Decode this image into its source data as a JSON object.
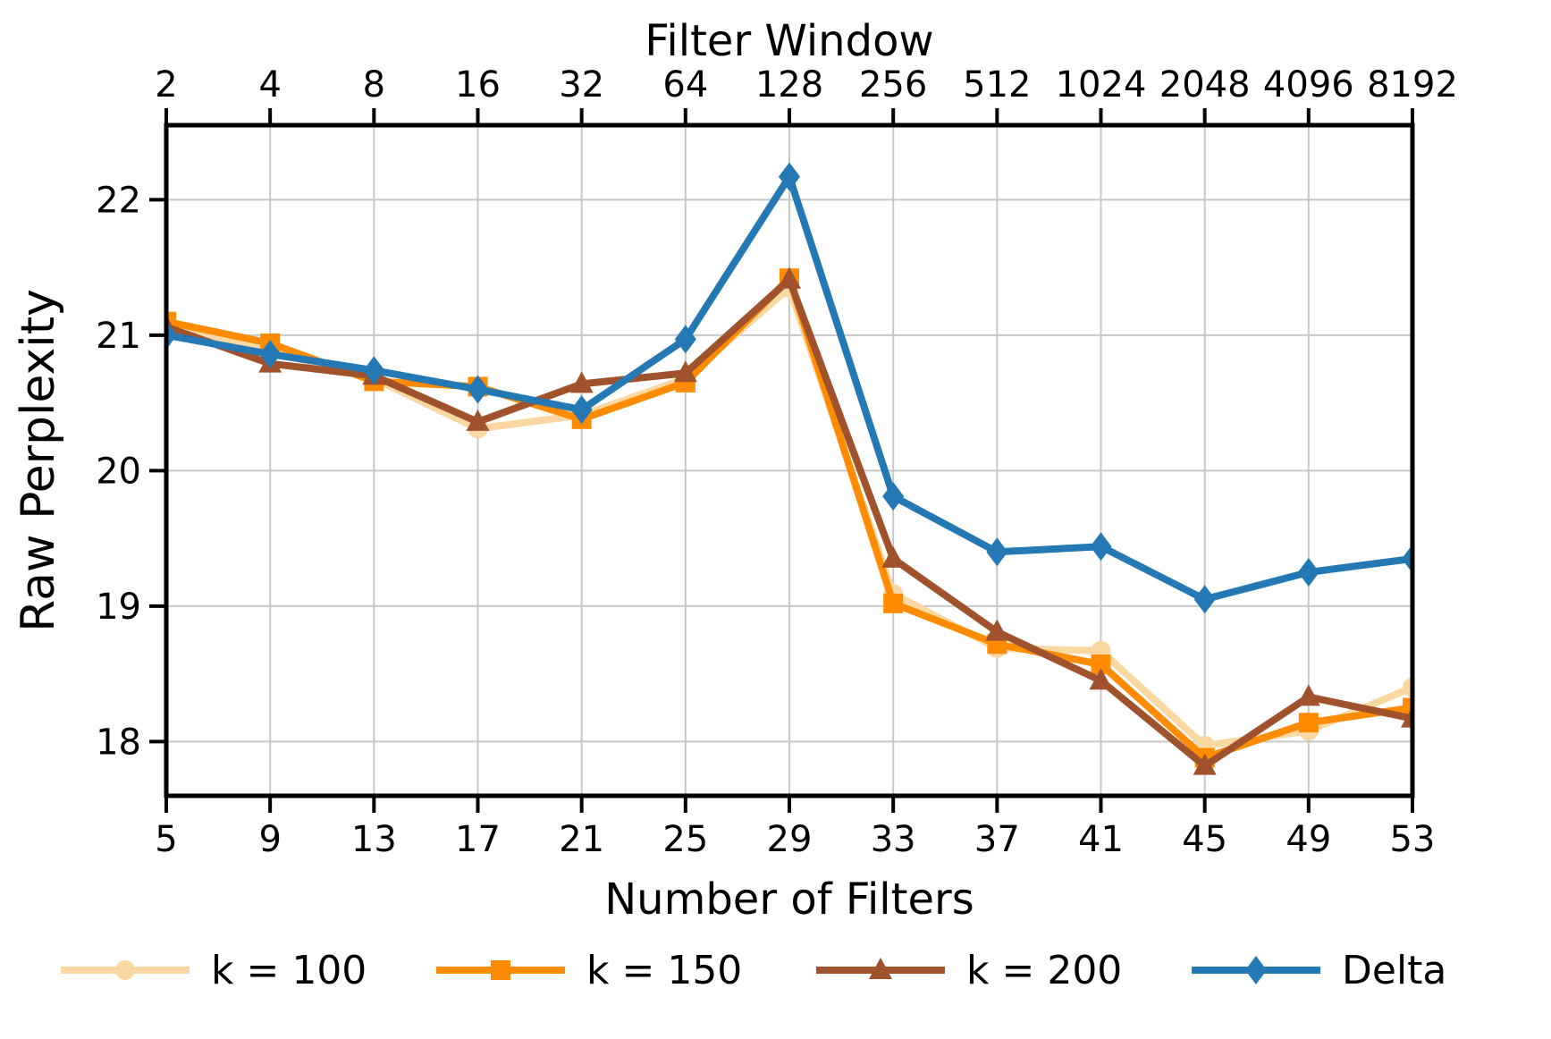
{
  "chart_data": {
    "type": "line",
    "top_axis": {
      "label": "Filter Window",
      "tick_labels": [
        "2",
        "4",
        "8",
        "16",
        "32",
        "64",
        "128",
        "256",
        "512",
        "1024",
        "2048",
        "4096",
        "8192"
      ]
    },
    "xlabel": "Number of Filters",
    "ylabel": "Raw Perplexity",
    "x": [
      5,
      9,
      13,
      17,
      21,
      25,
      29,
      33,
      37,
      41,
      45,
      49,
      53
    ],
    "xtick_labels": [
      "5",
      "9",
      "13",
      "17",
      "21",
      "25",
      "29",
      "33",
      "37",
      "41",
      "45",
      "49",
      "53"
    ],
    "yticks": [
      18,
      19,
      20,
      21,
      22
    ],
    "ytick_labels": [
      "18",
      "19",
      "20",
      "21",
      "22"
    ],
    "xlim": [
      5,
      53
    ],
    "ylim": [
      17.6,
      22.55
    ],
    "grid": true,
    "grid_color": "#C8C8C8",
    "axis_color": "#000000",
    "legend_position": "bottom",
    "series": [
      {
        "name": "k = 100",
        "color": "#FBD7A1",
        "marker": "circle",
        "values": [
          21.07,
          20.88,
          20.68,
          20.31,
          20.41,
          20.68,
          21.35,
          19.09,
          18.69,
          18.67,
          17.97,
          18.08,
          18.4
        ]
      },
      {
        "name": "k = 150",
        "color": "#FF8C00",
        "marker": "square",
        "values": [
          21.1,
          20.94,
          20.66,
          20.62,
          20.38,
          20.65,
          21.42,
          19.02,
          18.72,
          18.57,
          17.88,
          18.14,
          18.25
        ]
      },
      {
        "name": "k = 200",
        "color": "#A0522D",
        "marker": "triangle",
        "values": [
          21.06,
          20.79,
          20.7,
          20.36,
          20.64,
          20.72,
          21.41,
          19.35,
          18.81,
          18.45,
          17.82,
          18.33,
          18.17
        ]
      },
      {
        "name": "Delta",
        "color": "#2478B4",
        "marker": "diamond",
        "values": [
          21.0,
          20.86,
          20.74,
          20.6,
          20.45,
          20.97,
          22.17,
          19.81,
          19.4,
          19.44,
          19.05,
          19.25,
          19.35
        ]
      }
    ]
  }
}
